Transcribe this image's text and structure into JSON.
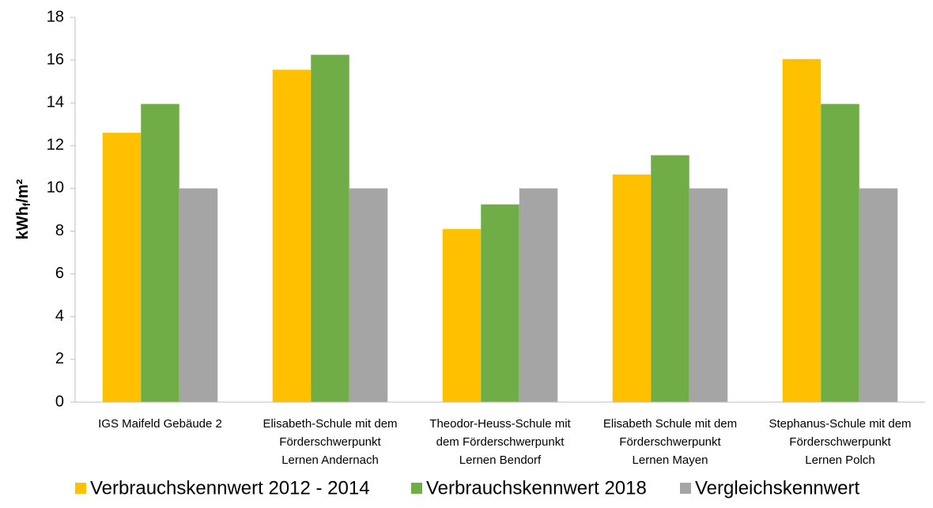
{
  "chart_data": {
    "type": "bar",
    "y_label": {
      "main": "kWh",
      "sub": "f",
      "rest": "/m²"
    },
    "categories": [
      "IGS Maifeld Gebäude 2",
      "Elisabeth-Schule mit dem\nFörderschwerpunkt\nLernen Andernach",
      "Theodor-Heuss-Schule mit\ndem Förderschwerpunkt\nLernen Bendorf",
      "Elisabeth Schule mit dem\nFörderschwerpunkt\nLernen Mayen",
      "Stephanus-Schule mit dem\nFörderschwerpunkt\nLernen Polch"
    ],
    "series": [
      {
        "name": "Verbrauchskennwert 2012 - 2014",
        "color": "#ffc000",
        "values": [
          12.6,
          15.55,
          8.1,
          10.65,
          16.05
        ]
      },
      {
        "name": "Verbrauchskennwert 2018",
        "color": "#70ad47",
        "values": [
          13.95,
          16.25,
          9.25,
          11.55,
          13.95
        ]
      },
      {
        "name": "Vergleichskennwert",
        "color": "#a5a5a5",
        "values": [
          10,
          10,
          10,
          10,
          10
        ]
      }
    ],
    "ylim": [
      0,
      18
    ],
    "yticks": [
      0,
      2,
      4,
      6,
      8,
      10,
      12,
      14,
      16,
      18
    ],
    "grid": false,
    "legend": "bottom"
  }
}
